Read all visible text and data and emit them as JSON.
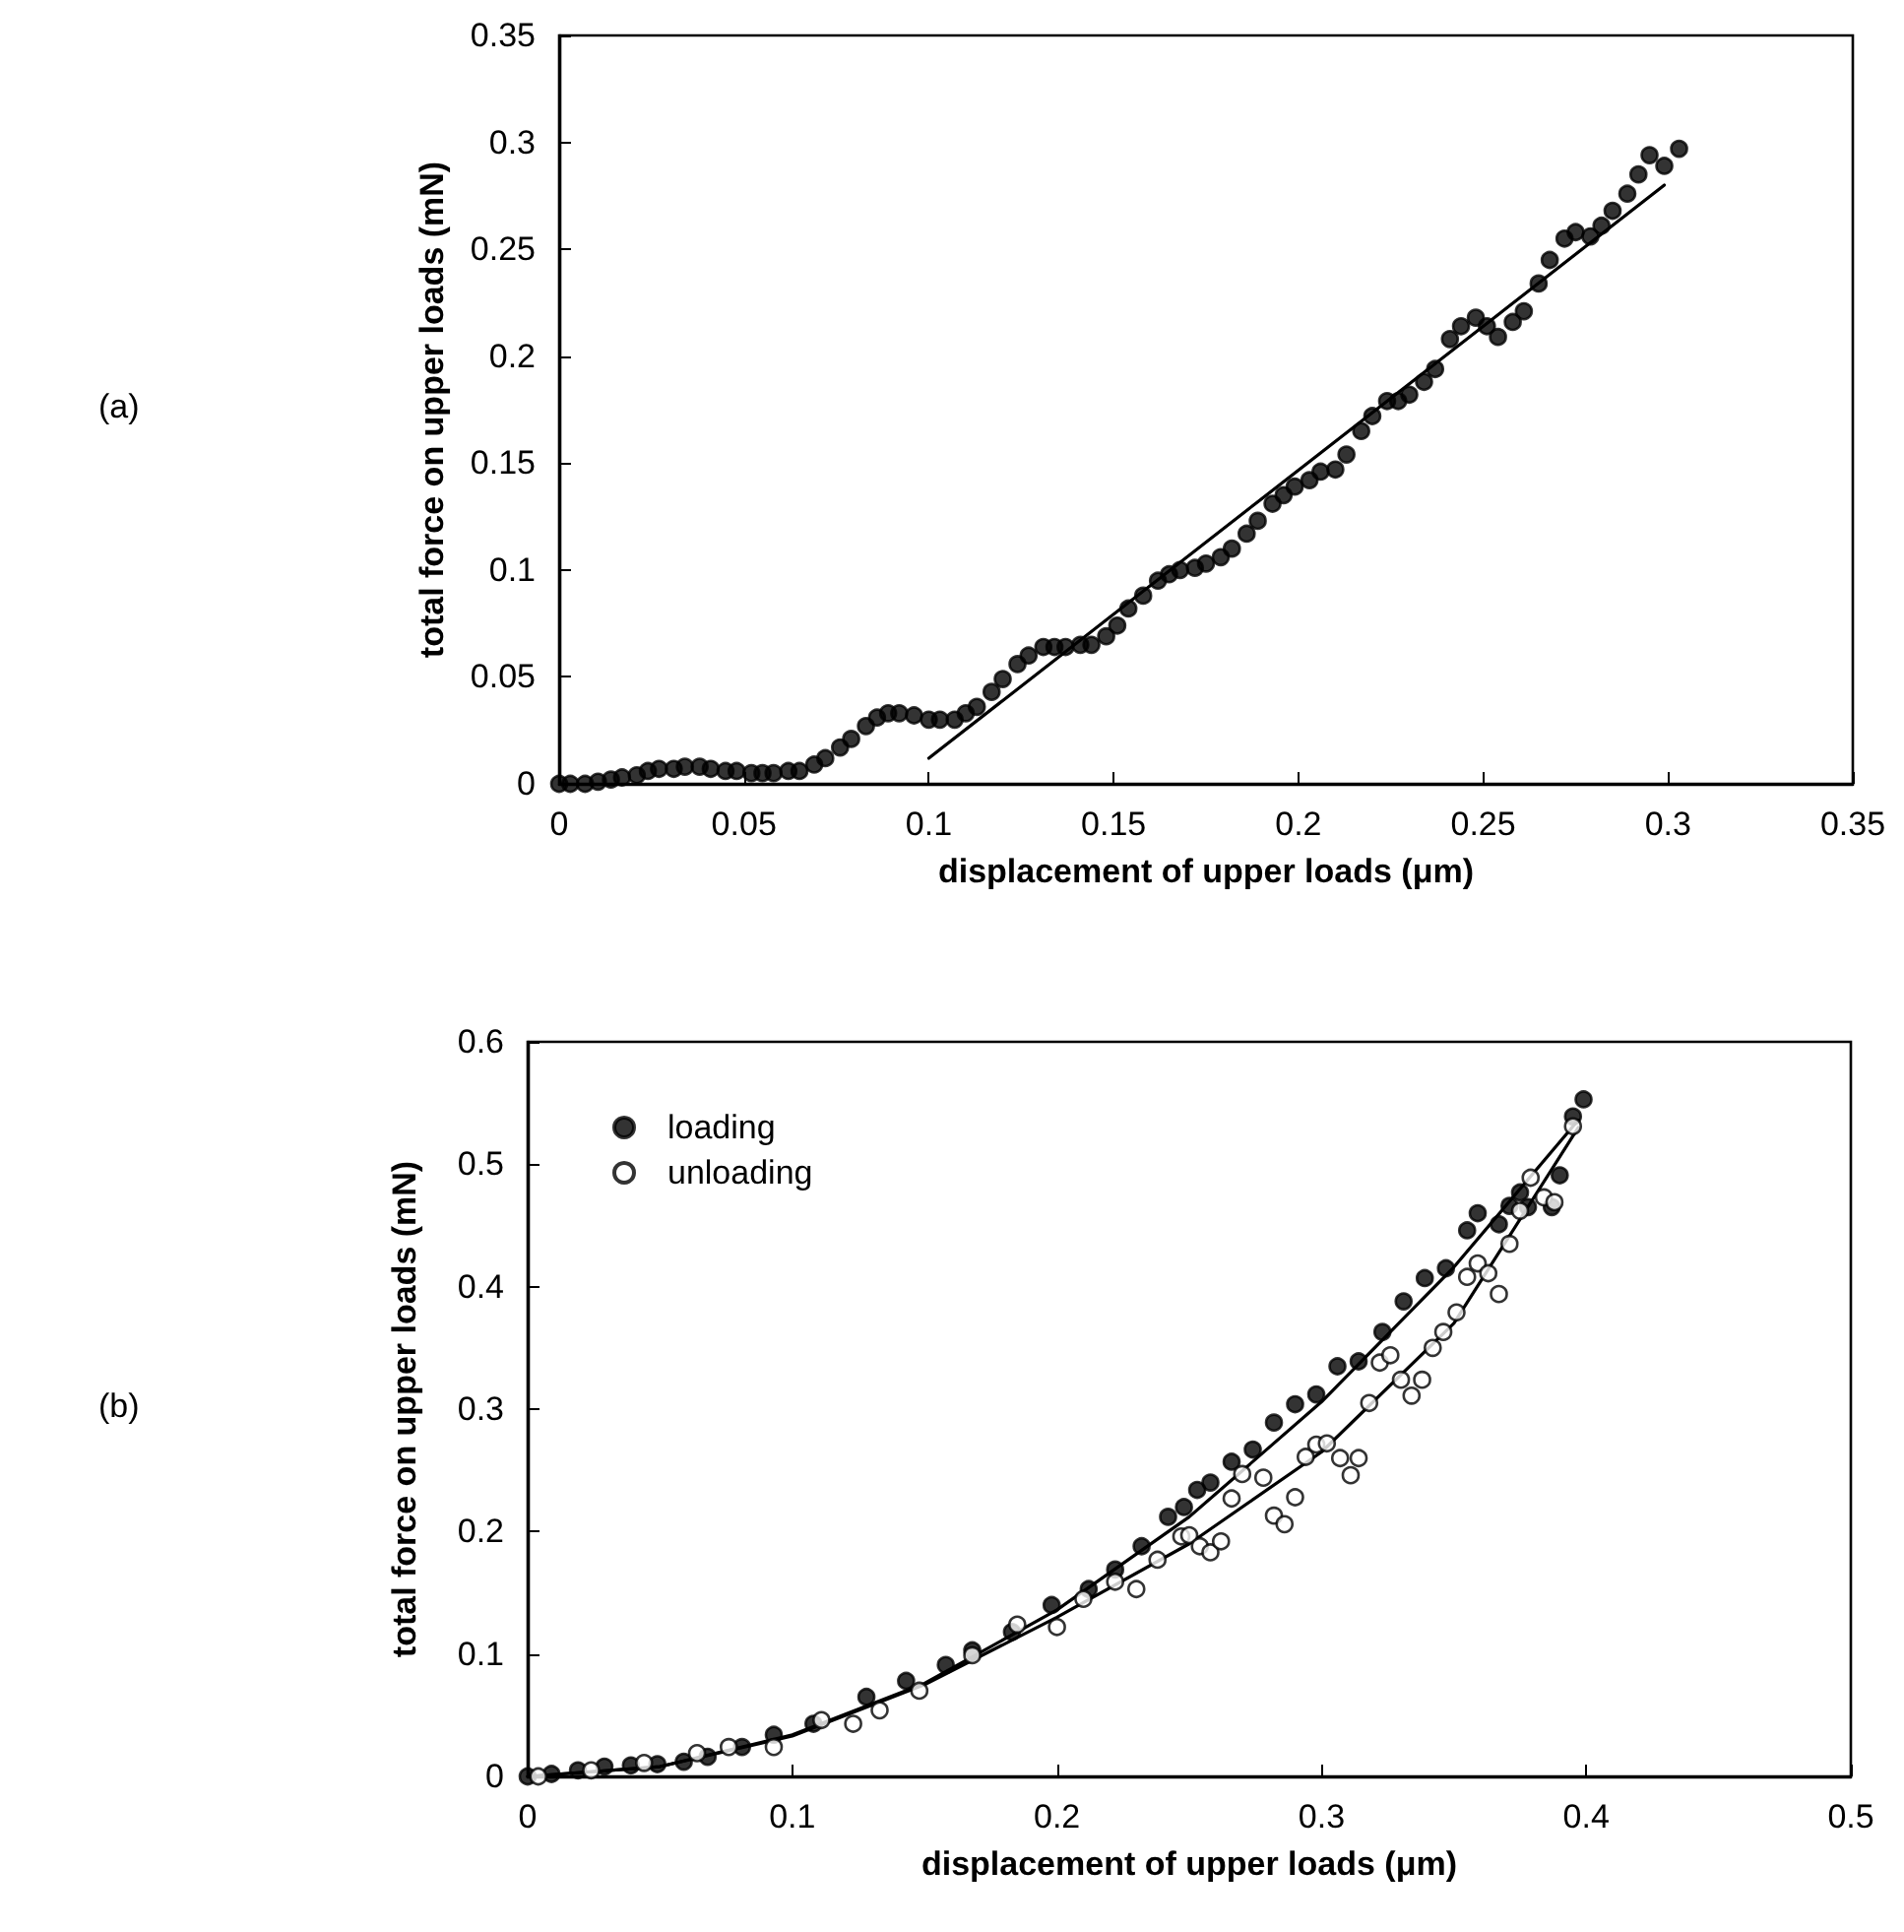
{
  "chart_data": [
    {
      "type": "scatter",
      "xlabel": "displacement of upper loads (μm)",
      "ylabel": "total force on upper loads (mN)",
      "annotations": [
        "(a)"
      ],
      "xlim": [
        0,
        0.35
      ],
      "xticks": [
        0,
        0.05,
        0.1,
        0.15,
        0.2,
        0.25,
        0.3,
        0.35
      ],
      "ylim": [
        0,
        0.35
      ],
      "yticks": [
        0,
        0.05,
        0.1,
        0.15,
        0.2,
        0.25,
        0.3,
        0.35
      ],
      "grid": false,
      "legend": false,
      "series": [
        {
          "color": "#000000",
          "marker": "circle",
          "x": [
            0,
            0.003,
            0.007,
            0.0105,
            0.014,
            0.017,
            0.021,
            0.024,
            0.027,
            0.031,
            0.034,
            0.038,
            0.041,
            0.045,
            0.048,
            0.052,
            0.055,
            0.058,
            0.062,
            0.065,
            0.069,
            0.072,
            0.076,
            0.079,
            0.083,
            0.086,
            0.089,
            0.092,
            0.096,
            0.1,
            0.103,
            0.107,
            0.11,
            0.113,
            0.117,
            0.12,
            0.124,
            0.127,
            0.131,
            0.134,
            0.137,
            0.141,
            0.144,
            0.148,
            0.151,
            0.154,
            0.158,
            0.162,
            0.165,
            0.168,
            0.172,
            0.175,
            0.179,
            0.182,
            0.186,
            0.189,
            0.193,
            0.196,
            0.199,
            0.203,
            0.206,
            0.21,
            0.213,
            0.217,
            0.22,
            0.224,
            0.227,
            0.23,
            0.234,
            0.237,
            0.241,
            0.244,
            0.248,
            0.251,
            0.254,
            0.258,
            0.261,
            0.265,
            0.268,
            0.272,
            0.275,
            0.279,
            0.282,
            0.285,
            0.289,
            0.292,
            0.295,
            0.299,
            0.303
          ],
          "values": [
            0,
            0,
            0,
            0.001,
            0.002,
            0.003,
            0.004,
            0.006,
            0.007,
            0.007,
            0.008,
            0.008,
            0.007,
            0.006,
            0.006,
            0.005,
            0.005,
            0.005,
            0.006,
            0.006,
            0.009,
            0.012,
            0.017,
            0.021,
            0.027,
            0.031,
            0.033,
            0.033,
            0.032,
            0.03,
            0.03,
            0.03,
            0.033,
            0.036,
            0.043,
            0.049,
            0.056,
            0.06,
            0.064,
            0.064,
            0.064,
            0.065,
            0.065,
            0.069,
            0.074,
            0.082,
            0.088,
            0.095,
            0.098,
            0.1,
            0.101,
            0.103,
            0.106,
            0.11,
            0.117,
            0.123,
            0.131,
            0.135,
            0.139,
            0.142,
            0.146,
            0.147,
            0.154,
            0.165,
            0.172,
            0.179,
            0.179,
            0.182,
            0.188,
            0.194,
            0.208,
            0.214,
            0.218,
            0.214,
            0.209,
            0.216,
            0.221,
            0.234,
            0.245,
            0.255,
            0.258,
            0.256,
            0.261,
            0.268,
            0.276,
            0.285,
            0.294,
            0.289,
            0.297
          ]
        },
        {
          "type": "line",
          "color": "#000000",
          "marker": "none",
          "line_style": "solid",
          "x": [
            0.1,
            0.299
          ],
          "values": [
            0.012,
            0.28
          ]
        }
      ]
    },
    {
      "type": "scatter",
      "xlabel": "displacement of upper loads (μm)",
      "ylabel": "total force on upper loads (mN)",
      "annotations": [
        "(b)"
      ],
      "xlim": [
        0,
        0.5
      ],
      "xticks": [
        0,
        0.1,
        0.2,
        0.3,
        0.4,
        0.5
      ],
      "ylim": [
        0,
        0.6
      ],
      "yticks": [
        0,
        0.1,
        0.2,
        0.3,
        0.4,
        0.5,
        0.6
      ],
      "grid": false,
      "legend": "top left",
      "series": [
        {
          "name": "loading",
          "color": "#000000",
          "marker": "circle",
          "x": [
            0,
            0.009,
            0.019,
            0.029,
            0.039,
            0.049,
            0.059,
            0.068,
            0.081,
            0.093,
            0.108,
            0.128,
            0.143,
            0.158,
            0.168,
            0.183,
            0.198,
            0.212,
            0.222,
            0.232,
            0.242,
            0.248,
            0.253,
            0.258,
            0.266,
            0.274,
            0.282,
            0.29,
            0.298,
            0.306,
            0.314,
            0.323,
            0.331,
            0.339,
            0.347,
            0.355,
            0.359,
            0.367,
            0.371,
            0.375,
            0.378,
            0.387,
            0.39,
            0.395,
            0.399
          ],
          "values": [
            0,
            0.002,
            0.005,
            0.008,
            0.009,
            0.01,
            0.012,
            0.016,
            0.024,
            0.034,
            0.043,
            0.065,
            0.078,
            0.091,
            0.103,
            0.118,
            0.14,
            0.153,
            0.169,
            0.188,
            0.212,
            0.22,
            0.234,
            0.24,
            0.257,
            0.267,
            0.289,
            0.304,
            0.312,
            0.335,
            0.339,
            0.363,
            0.388,
            0.407,
            0.415,
            0.446,
            0.46,
            0.451,
            0.466,
            0.477,
            0.465,
            0.465,
            0.491,
            0.539,
            0.553
          ]
        },
        {
          "name": "unloading",
          "color": "#ffffff",
          "marker": "circle",
          "x": [
            0.004,
            0.024,
            0.044,
            0.064,
            0.076,
            0.093,
            0.111,
            0.123,
            0.133,
            0.148,
            0.168,
            0.185,
            0.2,
            0.21,
            0.222,
            0.23,
            0.238,
            0.247,
            0.25,
            0.254,
            0.258,
            0.262,
            0.266,
            0.27,
            0.278,
            0.282,
            0.286,
            0.29,
            0.294,
            0.298,
            0.302,
            0.307,
            0.311,
            0.314,
            0.318,
            0.322,
            0.326,
            0.33,
            0.334,
            0.338,
            0.342,
            0.346,
            0.351,
            0.355,
            0.359,
            0.363,
            0.367,
            0.371,
            0.375,
            0.379,
            0.384,
            0.388,
            0.395
          ],
          "values": [
            0,
            0.005,
            0.011,
            0.019,
            0.024,
            0.024,
            0.046,
            0.043,
            0.054,
            0.07,
            0.099,
            0.124,
            0.122,
            0.145,
            0.159,
            0.153,
            0.177,
            0.196,
            0.197,
            0.188,
            0.183,
            0.192,
            0.227,
            0.247,
            0.244,
            0.213,
            0.206,
            0.228,
            0.261,
            0.271,
            0.272,
            0.26,
            0.246,
            0.26,
            0.305,
            0.338,
            0.344,
            0.324,
            0.311,
            0.324,
            0.35,
            0.363,
            0.379,
            0.408,
            0.419,
            0.411,
            0.394,
            0.435,
            0.462,
            0.489,
            0.473,
            0.469,
            0.531
          ]
        },
        {
          "type": "line",
          "color": "#000000",
          "marker": "none",
          "line_style": "solid",
          "x": [
            0,
            0.05,
            0.1,
            0.15,
            0.2,
            0.25,
            0.3,
            0.35,
            0.397
          ],
          "values": [
            0,
            0.008,
            0.034,
            0.076,
            0.136,
            0.212,
            0.306,
            0.416,
            0.536
          ]
        },
        {
          "type": "line",
          "color": "#000000",
          "marker": "none",
          "line_style": "solid",
          "x": [
            0,
            0.05,
            0.1,
            0.15,
            0.2,
            0.25,
            0.3,
            0.35,
            0.397
          ],
          "values": [
            0,
            0.008,
            0.033,
            0.075,
            0.13,
            0.19,
            0.265,
            0.37,
            0.53
          ]
        }
      ]
    }
  ]
}
